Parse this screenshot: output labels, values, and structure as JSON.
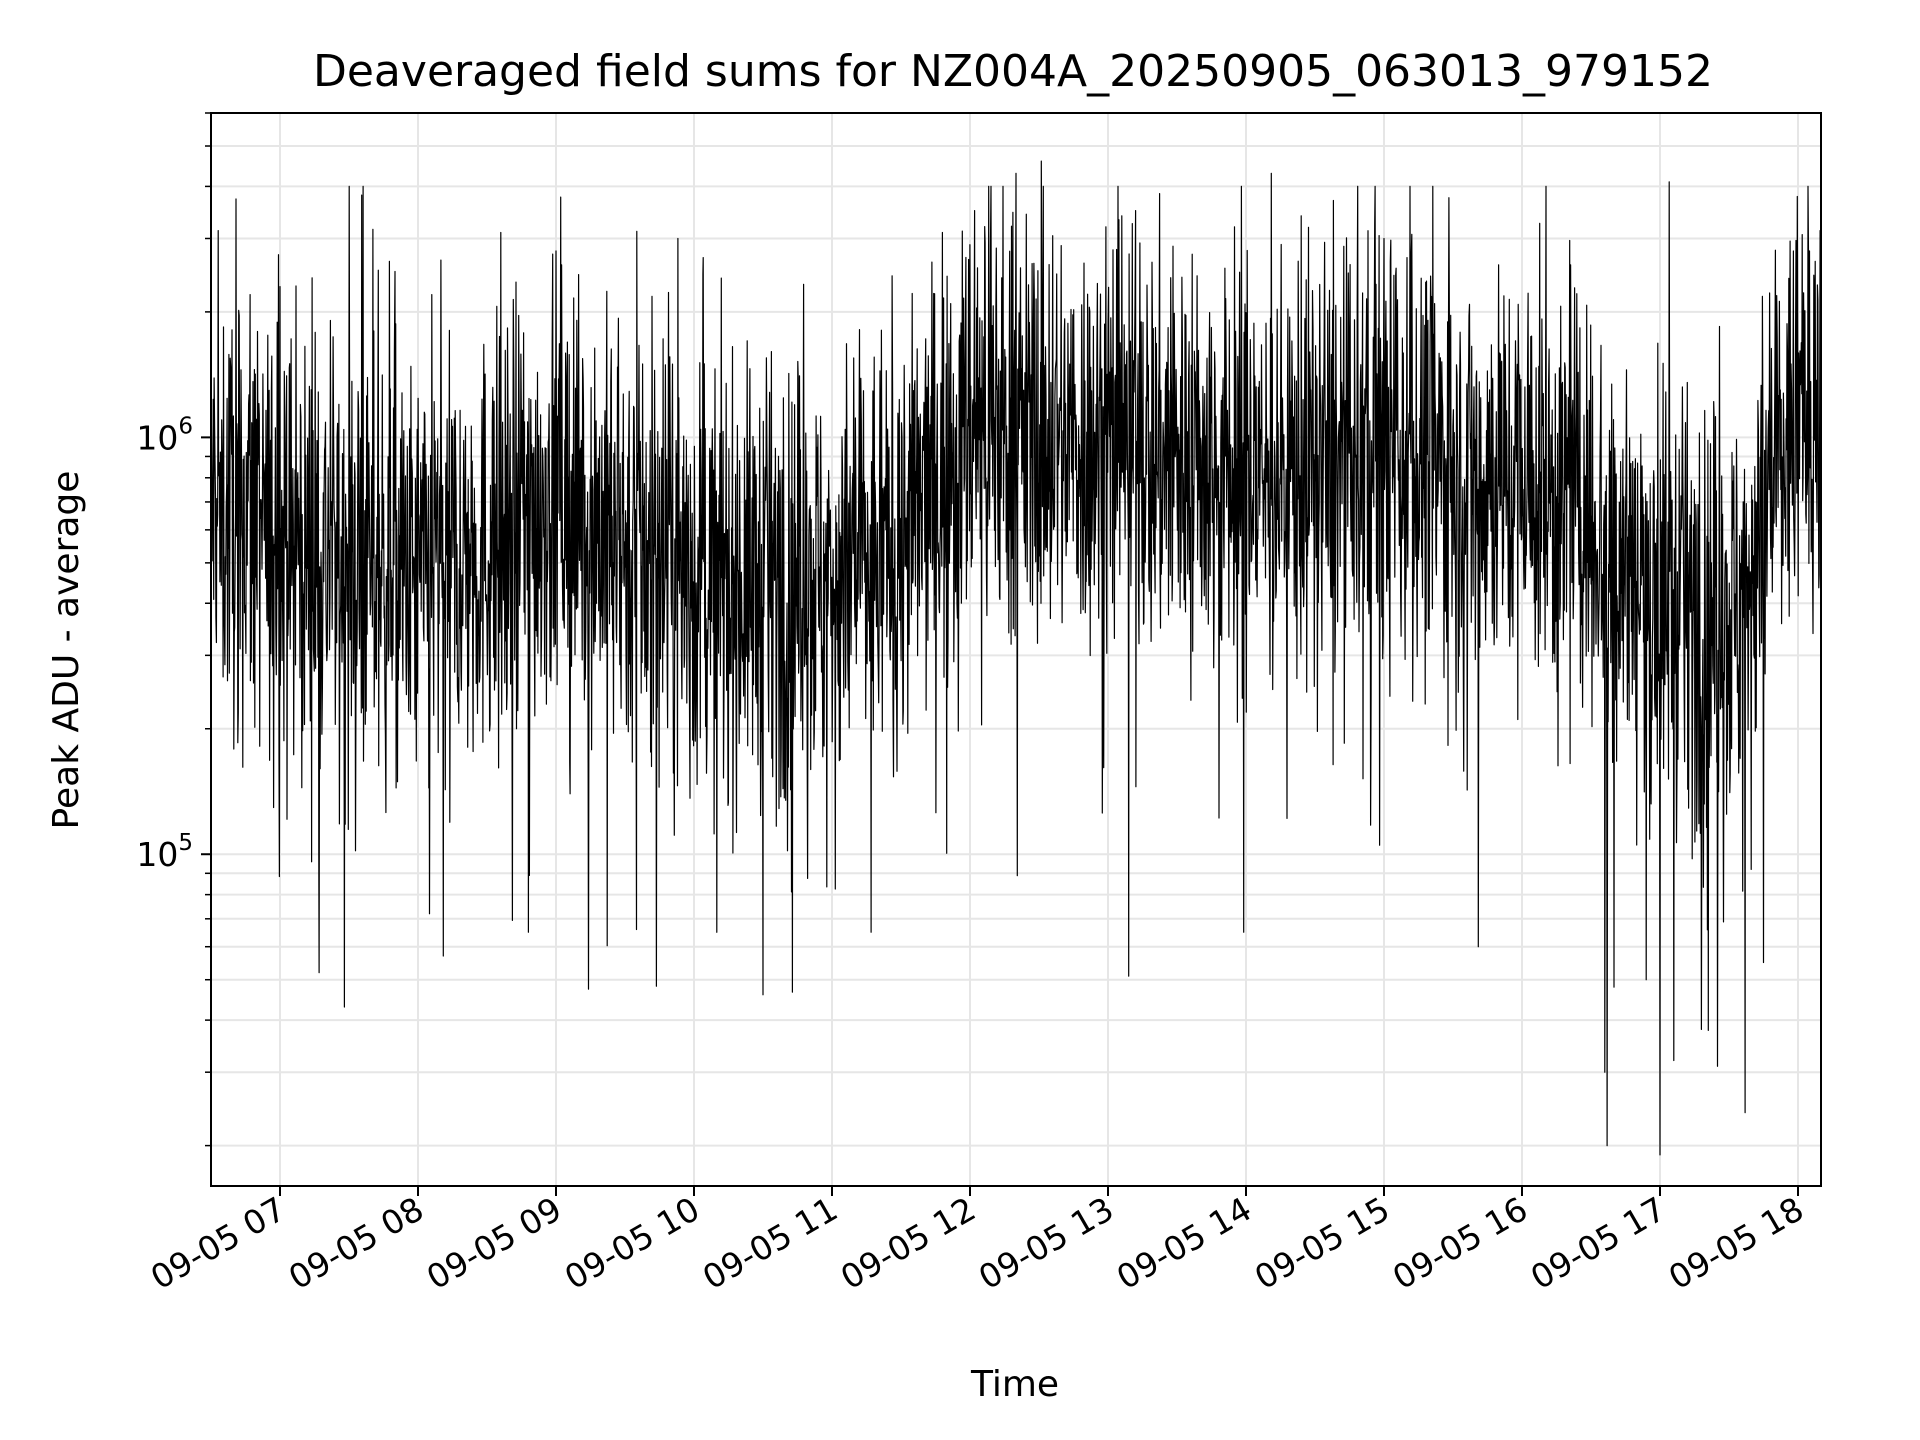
{
  "chart_data": {
    "type": "line",
    "title": "Deaveraged field sums for NZ004A_20250905_063013_979152",
    "xlabel": "Time",
    "ylabel": "Peak ADU - average",
    "yscale": "log",
    "ylim": [
      16000,
      6000000
    ],
    "xlim": [
      "2025-09-05 06:30",
      "2025-09-05 18:10"
    ],
    "x_ticks": [
      "09-05 07",
      "09-05 08",
      "09-05 09",
      "09-05 10",
      "09-05 11",
      "09-05 12",
      "09-05 13",
      "09-05 14",
      "09-05 15",
      "09-05 16",
      "09-05 17",
      "09-05 18"
    ],
    "y_ticks": [
      {
        "value": 100000,
        "base": "10",
        "exp": "5"
      },
      {
        "value": 1000000,
        "base": "10",
        "exp": "6"
      }
    ],
    "grid": true,
    "line_color": "#000000",
    "series": [
      {
        "name": "",
        "trend_x": [
          "2025-09-05 06:30",
          "2025-09-05 07:00",
          "2025-09-05 07:30",
          "2025-09-05 08:00",
          "2025-09-05 08:30",
          "2025-09-05 09:00",
          "2025-09-05 09:30",
          "2025-09-05 10:00",
          "2025-09-05 10:30",
          "2025-09-05 11:00",
          "2025-09-05 11:30",
          "2025-09-05 12:00",
          "2025-09-05 12:30",
          "2025-09-05 13:00",
          "2025-09-05 13:30",
          "2025-09-05 14:00",
          "2025-09-05 14:30",
          "2025-09-05 15:00",
          "2025-09-05 15:30",
          "2025-09-05 16:00",
          "2025-09-05 16:30",
          "2025-09-05 17:00",
          "2025-09-05 17:30",
          "2025-09-05 18:00",
          "2025-09-05 18:10"
        ],
        "trend_y": [
          700000,
          550000,
          500000,
          450000,
          550000,
          750000,
          550000,
          450000,
          450000,
          450000,
          550000,
          1100000,
          1000000,
          950000,
          900000,
          800000,
          850000,
          850000,
          850000,
          800000,
          650000,
          400000,
          350000,
          1100000,
          1200000
        ],
        "spikes_high": [
          {
            "x": "2025-09-05 06:47",
            "y": 2200000
          },
          {
            "x": "2025-09-05 07:00",
            "y": 2300000
          },
          {
            "x": "2025-09-05 07:50",
            "y": 2500000
          },
          {
            "x": "2025-09-05 08:06",
            "y": 2200000
          },
          {
            "x": "2025-09-05 08:36",
            "y": 3100000
          },
          {
            "x": "2025-09-05 09:00",
            "y": 2800000
          },
          {
            "x": "2025-09-05 09:35",
            "y": 2700000
          },
          {
            "x": "2025-09-05 09:53",
            "y": 3000000
          },
          {
            "x": "2025-09-05 10:04",
            "y": 2700000
          },
          {
            "x": "2025-09-05 11:48",
            "y": 3100000
          },
          {
            "x": "2025-09-05 12:02",
            "y": 3500000
          },
          {
            "x": "2025-09-05 12:20",
            "y": 4300000
          },
          {
            "x": "2025-09-05 12:31",
            "y": 4600000
          },
          {
            "x": "2025-09-05 13:06",
            "y": 3400000
          },
          {
            "x": "2025-09-05 13:12",
            "y": 3500000
          },
          {
            "x": "2025-09-05 13:55",
            "y": 3200000
          },
          {
            "x": "2025-09-05 14:11",
            "y": 4300000
          },
          {
            "x": "2025-09-05 14:24",
            "y": 3400000
          },
          {
            "x": "2025-09-05 14:38",
            "y": 3700000
          },
          {
            "x": "2025-09-05 15:00",
            "y": 3000000
          },
          {
            "x": "2025-09-05 15:10",
            "y": 2700000
          },
          {
            "x": "2025-09-05 17:00",
            "y": 1200000
          },
          {
            "x": "2025-09-05 17:04",
            "y": 4100000
          },
          {
            "x": "2025-09-05 17:58",
            "y": 2800000
          },
          {
            "x": "2025-09-05 18:05",
            "y": 2800000
          }
        ],
        "spikes_low": [
          {
            "x": "2025-09-05 07:17",
            "y": 52000
          },
          {
            "x": "2025-09-05 07:28",
            "y": 43000
          },
          {
            "x": "2025-09-05 08:05",
            "y": 72000
          },
          {
            "x": "2025-09-05 08:11",
            "y": 57000
          },
          {
            "x": "2025-09-05 08:48",
            "y": 65000
          },
          {
            "x": "2025-09-05 09:35",
            "y": 66000
          },
          {
            "x": "2025-09-05 10:30",
            "y": 46000
          },
          {
            "x": "2025-09-05 11:17",
            "y": 65000
          },
          {
            "x": "2025-09-05 13:09",
            "y": 51000
          },
          {
            "x": "2025-09-05 13:59",
            "y": 65000
          },
          {
            "x": "2025-09-05 15:41",
            "y": 60000
          },
          {
            "x": "2025-09-05 16:37",
            "y": 20000
          },
          {
            "x": "2025-09-05 16:36",
            "y": 30000
          },
          {
            "x": "2025-09-05 16:40",
            "y": 48000
          },
          {
            "x": "2025-09-05 16:54",
            "y": 50000
          },
          {
            "x": "2025-09-05 17:00",
            "y": 19000
          },
          {
            "x": "2025-09-05 17:06",
            "y": 32000
          },
          {
            "x": "2025-09-05 17:18",
            "y": 38000
          },
          {
            "x": "2025-09-05 17:25",
            "y": 31000
          },
          {
            "x": "2025-09-05 17:37",
            "y": 24000
          },
          {
            "x": "2025-09-05 17:45",
            "y": 55000
          }
        ]
      }
    ]
  }
}
